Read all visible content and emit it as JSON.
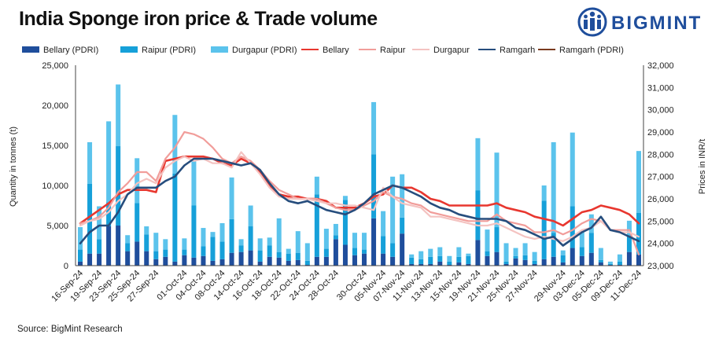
{
  "header": {
    "title": "India Sponge iron price & Trade volume",
    "logo_text": "BIGMINT"
  },
  "footer": {
    "source": "Source: BigMint Research"
  },
  "chart_data": {
    "type": "bar+line",
    "title": "India Sponge iron price & Trade volume",
    "ylabel_left": "Quantity in tonnes (t)",
    "ylabel_right": "Prices in INR/t",
    "ylim_left": [
      0,
      25000
    ],
    "ylim_right": [
      23000,
      32000
    ],
    "left_ticks": [
      "0",
      "5,000",
      "10,000",
      "15,000",
      "20,000",
      "25,000"
    ],
    "right_ticks": [
      "23,000",
      "24,000",
      "25,000",
      "26,000",
      "27,000",
      "28,000",
      "29,000",
      "30,000",
      "31,000",
      "32,000"
    ],
    "x_tick_labels": [
      "16-Sep-24",
      "19-Sep-24",
      "23-Sep-24",
      "25-Sep-24",
      "27-Sep-24",
      "01-Oct-24",
      "04-Oct-24",
      "08-Oct-24",
      "14-Oct-24",
      "16-Oct-24",
      "18-Oct-24",
      "22-Oct-24",
      "24-Oct-24",
      "28-Oct-24",
      "30-Oct-24",
      "05-Nov-24",
      "07-Nov-24",
      "11-Nov-24",
      "13-Nov-24",
      "15-Nov-24",
      "19-Nov-24",
      "21-Nov-24",
      "25-Nov-24",
      "27-Nov-24",
      "29-Nov-24",
      "03-Dec-24",
      "05-Dec-24",
      "09-Dec-24",
      "11-Dec-24"
    ],
    "legend": [
      "Bellary (PDRI)",
      "Raipur (PDRI)",
      "Durgapur (PDRI)",
      "Bellary",
      "Raipur",
      "Durgapur",
      "Ramgarh",
      "Ramgarh (PDRI)"
    ],
    "bar_series": [
      {
        "name": "Bellary (PDRI)",
        "color": "#1f4e9c",
        "values": [
          500,
          1500,
          1500,
          4900,
          5000,
          1800,
          3000,
          1800,
          800,
          1100,
          500,
          1300,
          1000,
          1200,
          600,
          800,
          1600,
          1700,
          1900,
          500,
          1100,
          1000,
          600,
          700,
          100,
          1100,
          1100,
          3300,
          2600,
          1300,
          1500,
          5900,
          1500,
          1100,
          4000,
          200,
          200,
          200,
          500,
          100,
          400,
          200,
          3200,
          1200,
          1700,
          200,
          900,
          700,
          200,
          800,
          1100,
          400,
          2200,
          1200,
          1600,
          400,
          100,
          100,
          1700,
          1400
        ]
      },
      {
        "name": "Raipur (PDRI)",
        "color": "#16a0d9",
        "values": [
          1500,
          8700,
          1800,
          3000,
          9900,
          1000,
          4800,
          2100,
          1000,
          900,
          11000,
          700,
          6500,
          1200,
          3000,
          2200,
          4200,
          800,
          3000,
          1400,
          1400,
          700,
          900,
          900,
          500,
          7800,
          1000,
          500,
          5600,
          900,
          500,
          8000,
          2200,
          1700,
          2000,
          800,
          600,
          900,
          700,
          400,
          700,
          1000,
          6200,
          600,
          3100,
          300,
          300,
          600,
          400,
          7300,
          3000,
          900,
          5200,
          1100,
          2500,
          300,
          100,
          400,
          2100,
          5200
        ]
      },
      {
        "name": "Durgapur (PDRI)",
        "color": "#5bc3ec",
        "values": [
          2800,
          5200,
          4100,
          10100,
          7700,
          1000,
          5600,
          1000,
          2300,
          1300,
          7300,
          1400,
          5500,
          2300,
          600,
          2300,
          5200,
          800,
          2600,
          1500,
          1000,
          4200,
          600,
          2700,
          2200,
          2200,
          2500,
          1400,
          500,
          1900,
          2100,
          6500,
          3100,
          8300,
          5400,
          400,
          1000,
          1000,
          1100,
          700,
          1200,
          300,
          6500,
          2700,
          9300,
          2300,
          1000,
          1500,
          1100,
          1900,
          11300,
          600,
          9200,
          2000,
          2300,
          1500,
          300,
          900,
          1800,
          7700
        ]
      }
    ],
    "line_series": [
      {
        "name": "Bellary",
        "color": "#e8372f",
        "values": [
          24900,
          25200,
          25500,
          25800,
          26200,
          26400,
          26400,
          26400,
          26300,
          27700,
          27800,
          27900,
          27900,
          27900,
          27800,
          27600,
          27500,
          27800,
          27600,
          27200,
          26600,
          26200,
          26100,
          26100,
          26000,
          26000,
          25900,
          25600,
          25600,
          25600,
          25800,
          26100,
          26200,
          26600,
          26500,
          26500,
          26300,
          26000,
          25900,
          25700,
          25700,
          25700,
          25700,
          25700,
          25800,
          25600,
          25500,
          25400,
          25200,
          25100,
          25000,
          24800,
          25100,
          25400,
          25500,
          25700,
          25600,
          25500,
          25300,
          24900
        ]
      },
      {
        "name": "Raipur",
        "color": "#f19d9a",
        "values": [
          24900,
          25000,
          25200,
          25600,
          26300,
          26700,
          27200,
          27200,
          26800,
          27800,
          28300,
          29000,
          28900,
          28700,
          28300,
          27800,
          27600,
          27900,
          27700,
          27300,
          26800,
          26400,
          26200,
          26000,
          26000,
          26000,
          25800,
          25600,
          25500,
          25500,
          25700,
          25900,
          26300,
          26100,
          26000,
          25800,
          25700,
          25400,
          25300,
          25200,
          25100,
          25000,
          25000,
          25000,
          25300,
          25000,
          24900,
          24800,
          24500,
          24500,
          24600,
          24400,
          24600,
          24900,
          25100,
          25000,
          24600,
          24600,
          24600,
          23500
        ]
      },
      {
        "name": "Durgapur",
        "color": "#f4c3c1",
        "values": [
          24800,
          25000,
          25100,
          25400,
          25900,
          26200,
          26700,
          26900,
          26700,
          27400,
          27700,
          27900,
          27700,
          27800,
          27600,
          27600,
          27400,
          28100,
          27600,
          27100,
          26500,
          26100,
          26000,
          26000,
          26000,
          25900,
          25800,
          25800,
          25700,
          25700,
          25600,
          25500,
          26500,
          26100,
          25800,
          25700,
          25600,
          25200,
          25200,
          25100,
          25000,
          24900,
          24800,
          24800,
          24900,
          24700,
          24500,
          24300,
          24200,
          24300,
          24200,
          24100,
          24300,
          24600,
          24700,
          25000,
          24600,
          24500,
          24500,
          24300
        ]
      },
      {
        "name": "Ramgarh",
        "color": "#264d7d",
        "values": [
          24000,
          24500,
          24800,
          24800,
          25400,
          26200,
          26500,
          26500,
          26500,
          26800,
          27000,
          27500,
          27800,
          27800,
          27800,
          27700,
          27600,
          27500,
          27600,
          27300,
          26700,
          26200,
          25900,
          25800,
          25900,
          25700,
          25500,
          25400,
          25300,
          25500,
          25800,
          26200,
          26400,
          26600,
          26500,
          26300,
          26100,
          25800,
          25600,
          25500,
          25300,
          25200,
          25100,
          25100,
          25100,
          25000,
          24700,
          24600,
          24400,
          24200,
          24300,
          23900,
          24200,
          24500,
          24700,
          25200,
          24600,
          24500,
          24300,
          24100
        ]
      },
      {
        "name": "Ramgarh (PDRI)",
        "color": "#7a3b1e",
        "values": []
      }
    ],
    "colors": {
      "logo": "#1f4e9c",
      "axis": "#333333"
    }
  }
}
